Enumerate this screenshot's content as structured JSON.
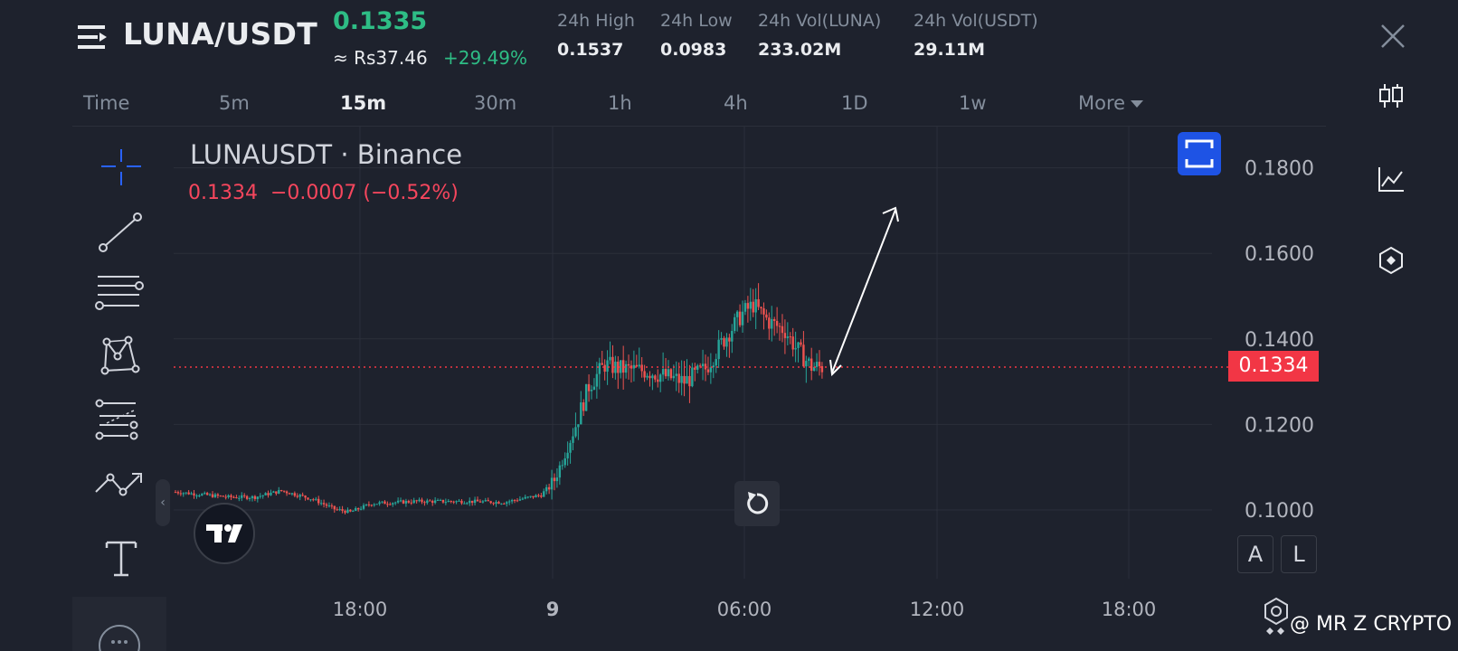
{
  "header": {
    "pair": "LUNA/USDT",
    "price": "0.1335",
    "approx_price": "≈ Rs37.46",
    "change_pct": "+29.49%",
    "stats": [
      {
        "label": "24h High",
        "value": "0.1537"
      },
      {
        "label": "24h Low",
        "value": "0.0983"
      },
      {
        "label": "24h Vol(LUNA)",
        "value": "233.02M"
      },
      {
        "label": "24h Vol(USDT)",
        "value": "29.11M"
      }
    ]
  },
  "timeframes": [
    "Time",
    "5m",
    "15m",
    "30m",
    "1h",
    "4h",
    "1D",
    "1w",
    "More"
  ],
  "active_timeframe": "15m",
  "legend": {
    "title": "LUNAUSDT · Binance",
    "values": "0.1334  −0.0007 (−0.52%)"
  },
  "chart_data": {
    "type": "candlestick",
    "symbol": "LUNAUSDT",
    "interval": "15m",
    "y_ticks": [
      "0.1800",
      "0.1600",
      "0.1400",
      "0.1200",
      "0.1000"
    ],
    "x_ticks": [
      "18:00",
      "9",
      "06:00",
      "12:00",
      "18:00"
    ],
    "ylim": [
      0.09,
      0.185
    ],
    "last_price": "0.1334",
    "last_price_value": 0.1334,
    "annotation": "arrow pointing up",
    "colors": {
      "up": "#26a69a",
      "down": "#ef5350",
      "last_price": "#f23645"
    }
  },
  "buttons": {
    "auto": "A",
    "log": "L"
  },
  "watermark": "@ MR Z CRYPTO",
  "colors": {
    "background": "#1e222d",
    "up": "#2ebd85",
    "down": "#f6465d",
    "accent": "#1e53e5"
  }
}
